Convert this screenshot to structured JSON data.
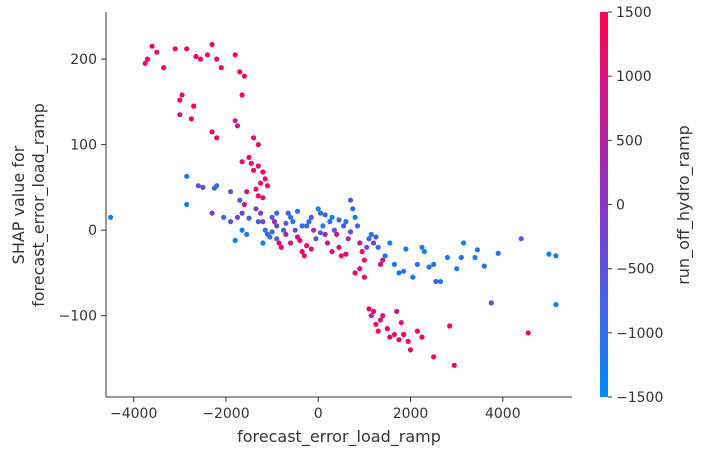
{
  "chart_data": {
    "type": "scatter",
    "xlabel": "forecast_error_load_ramp",
    "ylabel_lines": [
      "SHAP value for",
      "forecast_error_load_ramp"
    ],
    "xlim": [
      -4600,
      5500
    ],
    "ylim": [
      -195,
      255
    ],
    "xticks": [
      -4000,
      -2000,
      0,
      2000,
      4000
    ],
    "yticks": [
      -100,
      0,
      100,
      200
    ],
    "colorbar": {
      "label": "run_off_hydro_ramp",
      "range": [
        -1500,
        1500
      ],
      "ticks": [
        -1500,
        -1000,
        -500,
        0,
        500,
        1000,
        1500
      ],
      "colors": [
        "#008afb",
        "#ff0052"
      ],
      "mid_color": "#8a35c9"
    },
    "points": [
      [
        -4500,
        15,
        -1350
      ],
      [
        -3750,
        195,
        1400
      ],
      [
        -3700,
        200,
        1300
      ],
      [
        -3600,
        215,
        1450
      ],
      [
        -3500,
        208,
        1300
      ],
      [
        -3350,
        190,
        1400
      ],
      [
        -3100,
        212,
        1450
      ],
      [
        -2850,
        212,
        1300
      ],
      [
        -2650,
        203,
        1400
      ],
      [
        -2550,
        200,
        1200
      ],
      [
        -2400,
        205,
        1300
      ],
      [
        -2300,
        217,
        1450
      ],
      [
        -2200,
        200,
        1350
      ],
      [
        -2100,
        190,
        1300
      ],
      [
        -1800,
        205,
        1350
      ],
      [
        -1700,
        185,
        1400
      ],
      [
        -1600,
        180,
        1300
      ],
      [
        -1650,
        158,
        1350
      ],
      [
        -2950,
        158,
        1300
      ],
      [
        -3000,
        152,
        1200
      ],
      [
        -2700,
        145,
        1400
      ],
      [
        -3000,
        135,
        800
      ],
      [
        -2750,
        130,
        1300
      ],
      [
        -2300,
        115,
        1400
      ],
      [
        -2200,
        108,
        1350
      ],
      [
        -1800,
        128,
        600
      ],
      [
        -1750,
        122,
        800
      ],
      [
        -1400,
        108,
        1000
      ],
      [
        -1300,
        100,
        1200
      ],
      [
        -1650,
        80,
        1100
      ],
      [
        -1500,
        85,
        1300
      ],
      [
        -1450,
        78,
        900
      ],
      [
        -1400,
        70,
        1350
      ],
      [
        -1300,
        75,
        1100
      ],
      [
        -1200,
        68,
        1400
      ],
      [
        -1150,
        60,
        1300
      ],
      [
        -1250,
        55,
        1200
      ],
      [
        -1350,
        48,
        1000
      ],
      [
        -1100,
        52,
        1350
      ],
      [
        -1550,
        45,
        1150
      ],
      [
        -1600,
        30,
        900
      ],
      [
        -1200,
        38,
        1350
      ],
      [
        -1300,
        40,
        1200
      ],
      [
        -2850,
        63,
        -1200
      ],
      [
        -2600,
        52,
        -600
      ],
      [
        -2500,
        50,
        -400
      ],
      [
        -2250,
        49,
        -800
      ],
      [
        -2200,
        52,
        -1000
      ],
      [
        -1900,
        45,
        -400
      ],
      [
        -1700,
        35,
        -700
      ],
      [
        -2850,
        30,
        -1300
      ],
      [
        -2300,
        20,
        -300
      ],
      [
        -2050,
        15,
        -900
      ],
      [
        -1900,
        10,
        -600
      ],
      [
        -1750,
        15,
        -200
      ],
      [
        -1650,
        20,
        -500
      ],
      [
        -1500,
        14,
        -900
      ],
      [
        -1650,
        0,
        -1300
      ],
      [
        -1550,
        -5,
        -1100
      ],
      [
        -1800,
        -12,
        -1300
      ],
      [
        -1350,
        25,
        -200
      ],
      [
        -1250,
        20,
        100
      ],
      [
        -1200,
        10,
        -400
      ],
      [
        -1150,
        0,
        -1000
      ],
      [
        -1100,
        -5,
        -800
      ],
      [
        -1050,
        -8,
        -1200
      ],
      [
        -1200,
        -15,
        -1400
      ],
      [
        -1000,
        15,
        -600
      ],
      [
        -950,
        10,
        200
      ],
      [
        -900,
        5,
        -300
      ],
      [
        -900,
        -10,
        -700
      ],
      [
        -850,
        -15,
        1200
      ],
      [
        -800,
        -20,
        1400
      ],
      [
        -750,
        0,
        -900
      ],
      [
        -700,
        -5,
        500
      ],
      [
        -650,
        20,
        -700
      ],
      [
        -600,
        15,
        -1000
      ],
      [
        -550,
        10,
        -1200
      ],
      [
        -500,
        0,
        -400
      ],
      [
        -450,
        -8,
        1000
      ],
      [
        -400,
        -12,
        1300
      ],
      [
        -350,
        -25,
        1400
      ],
      [
        -300,
        -30,
        1100
      ],
      [
        -250,
        5,
        -800
      ],
      [
        -200,
        10,
        -1100
      ],
      [
        -150,
        15,
        -500
      ],
      [
        -100,
        0,
        200
      ],
      [
        -50,
        -10,
        -600
      ],
      [
        0,
        25,
        -1300
      ],
      [
        50,
        20,
        -900
      ],
      [
        100,
        5,
        -1200
      ],
      [
        150,
        -5,
        300
      ],
      [
        200,
        -15,
        800
      ],
      [
        250,
        10,
        -1000
      ],
      [
        300,
        15,
        -1300
      ],
      [
        350,
        0,
        -600
      ],
      [
        400,
        -5,
        900
      ],
      [
        450,
        -20,
        1200
      ],
      [
        500,
        -30,
        1300
      ],
      [
        550,
        5,
        -700
      ],
      [
        600,
        10,
        -1100
      ],
      [
        650,
        -10,
        400
      ],
      [
        700,
        35,
        -600
      ],
      [
        750,
        25,
        -1000
      ],
      [
        800,
        15,
        -1200
      ],
      [
        850,
        5,
        -900
      ],
      [
        900,
        -15,
        700
      ],
      [
        950,
        -25,
        1100
      ],
      [
        1000,
        -35,
        1300
      ],
      [
        1050,
        -20,
        -200
      ],
      [
        1100,
        -10,
        -800
      ],
      [
        1150,
        -5,
        -1200
      ],
      [
        1200,
        -15,
        -400
      ],
      [
        1300,
        -20,
        -1000
      ],
      [
        1350,
        -40,
        1200
      ],
      [
        1400,
        -35,
        800
      ],
      [
        1450,
        -30,
        -1000
      ],
      [
        1550,
        -15,
        -1300
      ],
      [
        1650,
        -40,
        -1200
      ],
      [
        1750,
        -50,
        -1400
      ],
      [
        1850,
        -48,
        -1000
      ],
      [
        1900,
        -22,
        -1200
      ],
      [
        2050,
        -55,
        -1300
      ],
      [
        2150,
        -40,
        -1100
      ],
      [
        2250,
        -20,
        -1300
      ],
      [
        2300,
        -25,
        -1400
      ],
      [
        2400,
        -43,
        -1200
      ],
      [
        2500,
        -40,
        -1000
      ],
      [
        2550,
        -60,
        -800
      ],
      [
        2650,
        -60,
        -1300
      ],
      [
        2800,
        -32,
        -1200
      ],
      [
        3000,
        -45,
        -1300
      ],
      [
        3100,
        -32,
        -1100
      ],
      [
        3150,
        -15,
        -1300
      ],
      [
        3400,
        -32,
        -1200
      ],
      [
        3450,
        -23,
        -1100
      ],
      [
        3600,
        -42,
        -1000
      ],
      [
        3750,
        -85,
        -400
      ],
      [
        3900,
        -27,
        -1000
      ],
      [
        4400,
        -10,
        -600
      ],
      [
        5000,
        -28,
        -1400
      ],
      [
        5150,
        -30,
        -1200
      ],
      [
        5150,
        -87,
        -1300
      ],
      [
        4550,
        -120,
        1200
      ],
      [
        800,
        -50,
        1300
      ],
      [
        900,
        -45,
        1100
      ],
      [
        1000,
        -55,
        1400
      ],
      [
        1100,
        -92,
        1300
      ],
      [
        1200,
        -95,
        1200
      ],
      [
        1250,
        -110,
        1400
      ],
      [
        1300,
        -118,
        1300
      ],
      [
        1400,
        -100,
        1100
      ],
      [
        1500,
        -115,
        1300
      ],
      [
        1550,
        -125,
        1400
      ],
      [
        1650,
        -122,
        1200
      ],
      [
        1750,
        -128,
        1300
      ],
      [
        1850,
        -122,
        1400
      ],
      [
        1950,
        -130,
        1300
      ],
      [
        2000,
        -140,
        1200
      ],
      [
        2150,
        -118,
        1300
      ],
      [
        2250,
        -125,
        1400
      ],
      [
        2500,
        -148,
        1300
      ],
      [
        2850,
        -112,
        1300
      ],
      [
        2950,
        -158,
        1400
      ],
      [
        1150,
        -100,
        600
      ],
      [
        1350,
        -105,
        900
      ],
      [
        1700,
        -95,
        800
      ],
      [
        1800,
        -108,
        1000
      ],
      [
        -1000,
        -2,
        -900
      ],
      [
        -700,
        8,
        -500
      ],
      [
        -350,
        5,
        -1000
      ],
      [
        50,
        -3,
        -700
      ],
      [
        450,
        12,
        -900
      ],
      [
        -600,
        -15,
        600
      ],
      [
        -150,
        -22,
        900
      ],
      [
        300,
        -25,
        1000
      ],
      [
        600,
        -28,
        1100
      ],
      [
        -450,
        22,
        -1100
      ],
      [
        150,
        18,
        -800
      ],
      [
        700,
        -2,
        -500
      ],
      [
        -1300,
        10,
        -700
      ],
      [
        -900,
        20,
        -900
      ],
      [
        1250,
        -8,
        -600
      ],
      [
        -250,
        -18,
        1300
      ]
    ]
  }
}
